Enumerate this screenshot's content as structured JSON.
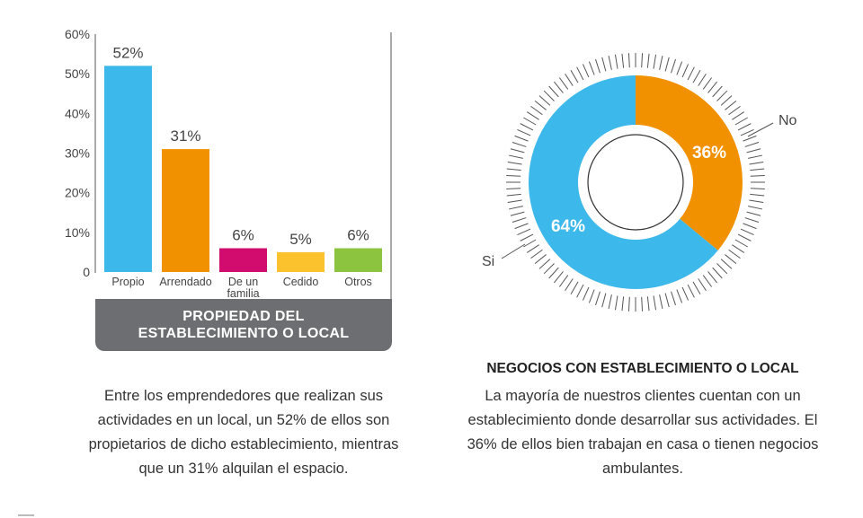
{
  "chart_data": [
    {
      "type": "bar",
      "categories": [
        "Propio",
        "Arrendado",
        "De un familia",
        "Cedido",
        "Otros"
      ],
      "category_lines": [
        [
          "Propio"
        ],
        [
          "Arrendado"
        ],
        [
          "De un",
          "familia"
        ],
        [
          "Cedido"
        ],
        [
          "Otros"
        ]
      ],
      "values": [
        52,
        31,
        6,
        5,
        6
      ],
      "data_labels": [
        "52%",
        "31%",
        "6%",
        "5%",
        "6%"
      ],
      "colors": [
        "#3db8ea",
        "#f29100",
        "#d20b6e",
        "#fbc22d",
        "#8cc43f"
      ],
      "yticks": [
        "60%",
        "50%",
        "40%",
        "30%",
        "20%",
        "10%",
        "0"
      ],
      "ylim": [
        0,
        60
      ],
      "title": "PROPIEDAD DEL ESTABLECIMIENTO O LOCAL",
      "title_lines": [
        "PROPIEDAD DEL",
        "ESTABLECIMIENTO O LOCAL"
      ]
    },
    {
      "type": "pie",
      "labels": [
        "No",
        "Si"
      ],
      "values": [
        36,
        64
      ],
      "data_labels": [
        "36%",
        "64%"
      ],
      "colors": [
        "#f29100",
        "#3db8ea"
      ],
      "title": "NEGOCIOS CON ESTABLECIMIENTO O LOCAL"
    }
  ],
  "texts": {
    "left_paragraph": "Entre los emprendedores que realizan sus actividades en un local, un 52% de ellos son propietarios de dicho establecimiento, mientras que un 31% alquilan el espacio.",
    "right_paragraph": "La mayoría de nuestros clientes cuentan con un establecimiento donde desarrollar sus actividades. El 36% de ellos bien trabajan en casa o tienen negocios ambulantes."
  }
}
